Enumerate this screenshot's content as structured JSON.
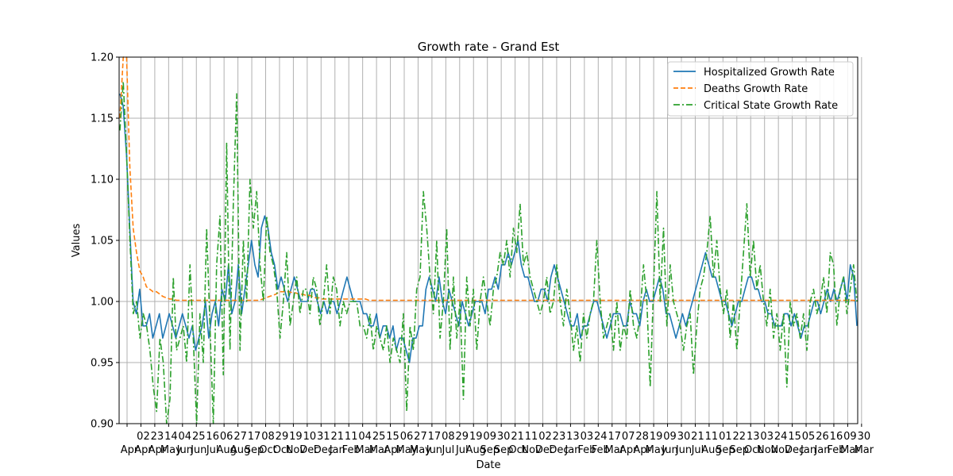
{
  "chart_data": {
    "type": "line",
    "title": "Growth rate - Grand Est",
    "xlabel": "Date",
    "ylabel": "Values",
    "ylim": [
      0.9,
      1.2
    ],
    "yticks": [
      "0.90",
      "0.95",
      "1.00",
      "1.05",
      "1.10",
      "1.15",
      "1.20"
    ],
    "grid": true,
    "legend_position": "top-right",
    "xticks": [
      {
        "day": "",
        "month": "Apr"
      },
      {
        "day": "02",
        "month": "Apr"
      },
      {
        "day": "23",
        "month": "Apr"
      },
      {
        "day": "14",
        "month": "May"
      },
      {
        "day": "04",
        "month": "Jun"
      },
      {
        "day": "25",
        "month": "Jun"
      },
      {
        "day": "16",
        "month": "Jul"
      },
      {
        "day": "06",
        "month": "Aug"
      },
      {
        "day": "27",
        "month": "Aug"
      },
      {
        "day": "17",
        "month": "Sep"
      },
      {
        "day": "08",
        "month": "Oct"
      },
      {
        "day": "29",
        "month": "Oct"
      },
      {
        "day": "19",
        "month": "Nov"
      },
      {
        "day": "10",
        "month": "Dec"
      },
      {
        "day": "31",
        "month": "Dec"
      },
      {
        "day": "21",
        "month": "Jan"
      },
      {
        "day": "11",
        "month": "Feb"
      },
      {
        "day": "04",
        "month": "Mar"
      },
      {
        "day": "25",
        "month": "Mar"
      },
      {
        "day": "15",
        "month": "Apr"
      },
      {
        "day": "06",
        "month": "May"
      },
      {
        "day": "27",
        "month": "May"
      },
      {
        "day": "17",
        "month": "Jun"
      },
      {
        "day": "08",
        "month": "Jul"
      },
      {
        "day": "29",
        "month": "Jul"
      },
      {
        "day": "19",
        "month": "Aug"
      },
      {
        "day": "09",
        "month": "Sep"
      },
      {
        "day": "30",
        "month": "Sep"
      },
      {
        "day": "21",
        "month": "Oct"
      },
      {
        "day": "11",
        "month": "Nov"
      },
      {
        "day": "02",
        "month": "Dec"
      },
      {
        "day": "23",
        "month": "Dec"
      },
      {
        "day": "13",
        "month": "Jan"
      },
      {
        "day": "03",
        "month": "Feb"
      },
      {
        "day": "24",
        "month": "Feb"
      },
      {
        "day": "17",
        "month": "Mar"
      },
      {
        "day": "07",
        "month": "Apr"
      },
      {
        "day": "28",
        "month": "Apr"
      },
      {
        "day": "19",
        "month": "May"
      },
      {
        "day": "09",
        "month": "Jun"
      },
      {
        "day": "30",
        "month": "Jun"
      },
      {
        "day": "21",
        "month": "Jul"
      },
      {
        "day": "11",
        "month": "Aug"
      },
      {
        "day": "01",
        "month": "Sep"
      },
      {
        "day": "22",
        "month": "Sep"
      },
      {
        "day": "13",
        "month": "Oct"
      },
      {
        "day": "03",
        "month": "Nov"
      },
      {
        "day": "24",
        "month": "Nov"
      },
      {
        "day": "15",
        "month": "Dec"
      },
      {
        "day": "05",
        "month": "Jan"
      },
      {
        "day": "26",
        "month": "Jan"
      },
      {
        "day": "16",
        "month": "Feb"
      },
      {
        "day": "09",
        "month": "Mar"
      },
      {
        "day": "30",
        "month": "Mar"
      }
    ],
    "series": [
      {
        "name": "Hospitalized Growth Rate",
        "color": "#1f77b4",
        "dash": "solid",
        "values": [
          1.17,
          1.16,
          1.12,
          1.06,
          1.0,
          0.99,
          1.01,
          0.98,
          0.98,
          0.99,
          0.97,
          0.98,
          0.99,
          0.97,
          0.98,
          0.99,
          0.98,
          0.97,
          0.98,
          0.99,
          0.98,
          0.97,
          0.98,
          0.96,
          0.97,
          0.98,
          1.0,
          0.97,
          0.99,
          1.0,
          0.98,
          1.01,
          1.0,
          1.03,
          0.99,
          1.0,
          1.03,
          0.99,
          1.01,
          1.03,
          1.05,
          1.03,
          1.02,
          1.06,
          1.07,
          1.06,
          1.04,
          1.03,
          1.01,
          1.02,
          1.01,
          1.0,
          1.01,
          1.02,
          1.01,
          1.0,
          1.0,
          1.0,
          1.01,
          1.01,
          1.0,
          0.99,
          1.0,
          0.99,
          1.0,
          1.0,
          0.99,
          1.0,
          1.01,
          1.02,
          1.01,
          1.0,
          1.0,
          1.0,
          0.99,
          0.99,
          0.98,
          0.98,
          0.99,
          0.97,
          0.98,
          0.98,
          0.97,
          0.98,
          0.96,
          0.97,
          0.97,
          0.96,
          0.95,
          0.97,
          0.97,
          0.98,
          0.98,
          1.01,
          1.02,
          1.01,
          1.0,
          1.02,
          1.0,
          0.99,
          1.01,
          1.0,
          0.99,
          0.98,
          1.0,
          0.99,
          0.98,
          0.99,
          1.0,
          1.0,
          1.0,
          0.99,
          1.01,
          1.01,
          1.02,
          1.01,
          1.03,
          1.03,
          1.04,
          1.03,
          1.04,
          1.05,
          1.03,
          1.02,
          1.02,
          1.01,
          1.0,
          1.0,
          1.01,
          1.01,
          1.0,
          1.02,
          1.03,
          1.02,
          1.01,
          1.0,
          0.99,
          0.98,
          0.98,
          0.99,
          0.97,
          0.98,
          0.98,
          0.99,
          1.0,
          1.0,
          0.99,
          0.98,
          0.97,
          0.98,
          0.99,
          0.99,
          0.99,
          0.98,
          0.98,
          1.0,
          0.99,
          0.99,
          0.98,
          1.0,
          1.01,
          1.0,
          1.0,
          1.01,
          1.02,
          1.01,
          0.99,
          0.99,
          0.98,
          0.97,
          0.98,
          0.99,
          0.98,
          0.99,
          1.0,
          1.01,
          1.02,
          1.03,
          1.04,
          1.03,
          1.02,
          1.02,
          1.01,
          1.0,
          1.0,
          0.99,
          0.98,
          0.99,
          1.0,
          1.0,
          1.01,
          1.02,
          1.02,
          1.01,
          1.01,
          1.0,
          1.0,
          0.99,
          0.99,
          0.98,
          0.98,
          0.98,
          0.99,
          0.99,
          0.98,
          0.99,
          0.98,
          0.97,
          0.98,
          0.98,
          0.99,
          1.0,
          1.0,
          0.99,
          1.0,
          1.01,
          1.0,
          1.01,
          1.0,
          1.01,
          1.02,
          1.0,
          1.03,
          1.02,
          0.98
        ]
      },
      {
        "name": "Deaths Growth Rate",
        "color": "#ff7f0e",
        "dash": "dashed",
        "values": [
          1.15,
          1.2,
          1.2,
          1.11,
          1.06,
          1.04,
          1.025,
          1.02,
          1.012,
          1.01,
          1.008,
          1.008,
          1.006,
          1.004,
          1.003,
          1.002,
          1.002,
          1.001,
          1.001,
          1.001,
          1.001,
          1.001,
          1.001,
          1.001,
          1.001,
          1.001,
          1.001,
          1.001,
          1.001,
          1.001,
          1.001,
          1.001,
          1.001,
          1.001,
          1.001,
          1.001,
          1.001,
          1.001,
          1.001,
          1.001,
          1.001,
          1.001,
          1.001,
          1.002,
          1.003,
          1.004,
          1.005,
          1.006,
          1.008,
          1.008,
          1.008,
          1.008,
          1.007,
          1.007,
          1.006,
          1.006,
          1.005,
          1.005,
          1.004,
          1.003,
          1.003,
          1.002,
          1.002,
          1.002,
          1.002,
          1.002,
          1.002,
          1.002,
          1.002,
          1.002,
          1.002,
          1.002,
          1.002,
          1.002,
          1.002,
          1.001,
          1.001,
          1.001,
          1.001,
          1.001,
          1.001,
          1.001,
          1.001,
          1.001,
          1.001,
          1.001,
          1.001,
          1.001,
          1.001,
          1.001,
          1.001,
          1.001,
          1.001,
          1.001,
          1.001,
          1.001,
          1.001,
          1.001,
          1.001,
          1.001,
          1.001,
          1.001,
          1.001,
          1.001,
          1.001,
          1.001,
          1.001,
          1.001,
          1.001,
          1.001,
          1.001,
          1.001,
          1.001,
          1.001,
          1.001,
          1.001,
          1.001,
          1.001,
          1.001,
          1.001,
          1.001,
          1.001,
          1.001,
          1.001,
          1.001,
          1.001,
          1.001,
          1.001,
          1.001,
          1.001,
          1.001,
          1.001,
          1.001,
          1.001,
          1.001,
          1.001,
          1.001,
          1.001,
          1.001,
          1.001,
          1.001,
          1.001,
          1.001,
          1.001,
          1.001,
          1.001,
          1.001,
          1.001,
          1.001,
          1.001,
          1.001,
          1.001,
          1.001,
          1.001,
          1.001,
          1.001,
          1.001,
          1.001,
          1.001,
          1.001,
          1.001,
          1.001,
          1.001,
          1.001,
          1.001,
          1.001,
          1.001,
          1.001,
          1.001,
          1.001,
          1.001,
          1.001,
          1.001,
          1.001,
          1.001,
          1.001,
          1.001,
          1.001,
          1.001,
          1.001,
          1.001,
          1.001,
          1.001,
          1.001,
          1.001,
          1.001,
          1.001,
          1.001,
          1.001,
          1.001,
          1.001,
          1.001,
          1.001,
          1.001,
          1.001,
          1.001,
          1.001,
          1.001,
          1.001,
          1.001,
          1.001,
          1.001,
          1.001,
          1.001,
          1.001,
          1.001,
          1.001,
          1.001,
          1.001,
          1.001,
          1.001,
          1.001,
          1.001,
          1.001,
          1.001,
          1.001,
          1.001,
          1.001,
          1.001,
          1.001,
          1.001,
          1.001,
          1.0
        ]
      },
      {
        "name": "Critical State Growth Rate",
        "color": "#2ca02c",
        "dash": "dashdot",
        "values": [
          1.14,
          1.18,
          1.12,
          1.05,
          0.99,
          1.0,
          0.97,
          0.99,
          0.98,
          0.96,
          0.93,
          0.91,
          0.97,
          0.95,
          0.9,
          0.92,
          1.02,
          0.96,
          0.97,
          0.98,
          0.95,
          1.03,
          0.97,
          0.9,
          0.99,
          0.95,
          1.06,
          0.98,
          0.9,
          1.03,
          1.07,
          0.94,
          1.13,
          0.96,
          1.08,
          1.17,
          0.96,
          1.05,
          1.0,
          1.1,
          1.06,
          1.09,
          1.03,
          1.0,
          1.07,
          1.04,
          1.03,
          1.01,
          0.97,
          1.0,
          1.04,
          0.98,
          1.0,
          1.02,
          0.99,
          1.01,
          1.01,
          0.99,
          1.02,
          1.01,
          0.98,
          1.0,
          1.03,
          0.99,
          1.02,
          1.01,
          0.98,
          1.0,
          0.99,
          1.0,
          1.0,
          1.0,
          0.98,
          0.98,
          0.97,
          0.99,
          0.96,
          0.98,
          0.97,
          0.96,
          0.98,
          0.95,
          0.97,
          0.96,
          0.95,
          0.99,
          0.91,
          0.98,
          0.96,
          1.01,
          1.02,
          1.09,
          1.06,
          1.02,
          0.99,
          1.05,
          0.97,
          1.0,
          1.06,
          0.96,
          1.02,
          0.97,
          1.0,
          0.92,
          1.02,
          0.98,
          1.01,
          0.96,
          1.0,
          1.02,
          1.0,
          0.98,
          1.01,
          1.02,
          1.04,
          1.03,
          1.05,
          1.02,
          1.06,
          1.04,
          1.08,
          1.03,
          1.04,
          1.02,
          1.01,
          1.0,
          0.99,
          1.0,
          1.02,
          0.99,
          1.0,
          1.03,
          1.0,
          0.98,
          1.01,
          0.99,
          0.96,
          0.98,
          0.95,
          0.99,
          0.97,
          0.99,
          1.0,
          1.05,
          1.0,
          0.97,
          0.98,
          0.99,
          0.96,
          1.0,
          0.96,
          0.98,
          0.97,
          1.01,
          0.98,
          0.97,
          0.99,
          1.03,
          1.0,
          0.93,
          1.01,
          1.09,
          1.0,
          1.06,
          0.98,
          1.03,
          1.0,
          0.99,
          0.98,
          0.96,
          0.98,
          0.99,
          0.94,
          0.98,
          1.01,
          1.02,
          1.04,
          1.07,
          1.02,
          1.05,
          1.01,
          0.99,
          1.01,
          0.97,
          1.0,
          0.96,
          1.0,
          1.04,
          1.08,
          1.02,
          1.05,
          1.01,
          1.03,
          1.0,
          0.98,
          1.01,
          0.97,
          0.99,
          0.96,
          0.99,
          0.93,
          1.0,
          0.98,
          0.99,
          0.97,
          0.99,
          0.96,
          1.0,
          1.01,
          0.99,
          1.0,
          1.02,
          0.99,
          1.04,
          1.03,
          0.98,
          1.01,
          1.02,
          0.99,
          1.01,
          1.03,
          1.0
        ]
      }
    ]
  }
}
